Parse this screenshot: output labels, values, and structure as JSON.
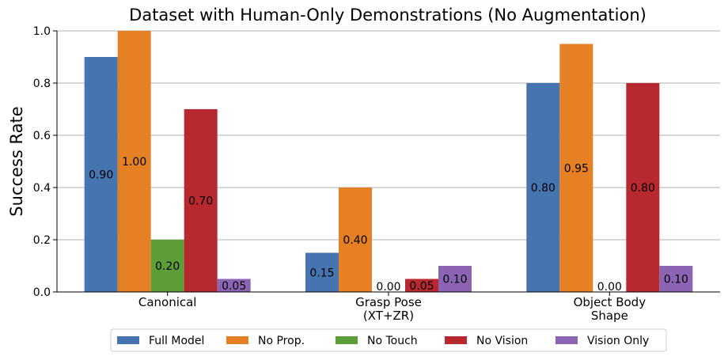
{
  "chart_data": {
    "type": "bar",
    "title": "Dataset with Human-Only Demonstrations (No Augmentation)",
    "xlabel": "",
    "ylabel": "Success Rate",
    "ylim": [
      0,
      1.0
    ],
    "yticks": [
      "0.0",
      "0.2",
      "0.4",
      "0.6",
      "0.8",
      "1.0"
    ],
    "grid": "horizontal",
    "legend_position": "bottom-center",
    "categories": [
      [
        "Canonical"
      ],
      [
        "Grasp Pose",
        "(XT+ZR)"
      ],
      [
        "Object Body",
        "Shape"
      ]
    ],
    "series": [
      {
        "name": "Full Model",
        "color": "#4674b1",
        "values": [
          0.9,
          0.15,
          0.8
        ],
        "labels": [
          "0.90",
          "0.15",
          "0.80"
        ]
      },
      {
        "name": "No Prop.",
        "color": "#e58024",
        "values": [
          1.0,
          0.4,
          0.95
        ],
        "labels": [
          "1.00",
          "0.40",
          "0.95"
        ]
      },
      {
        "name": "No Touch",
        "color": "#5d9e38",
        "values": [
          0.2,
          0.0,
          0.0
        ],
        "labels": [
          "0.20",
          "0.00",
          "0.00"
        ]
      },
      {
        "name": "No Vision",
        "color": "#b8282f",
        "values": [
          0.7,
          0.05,
          0.8
        ],
        "labels": [
          "0.70",
          "0.05",
          "0.80"
        ]
      },
      {
        "name": "Vision Only",
        "color": "#8c64b4",
        "values": [
          0.05,
          0.1,
          0.1
        ],
        "labels": [
          "0.05",
          "0.10",
          "0.10"
        ]
      }
    ]
  }
}
